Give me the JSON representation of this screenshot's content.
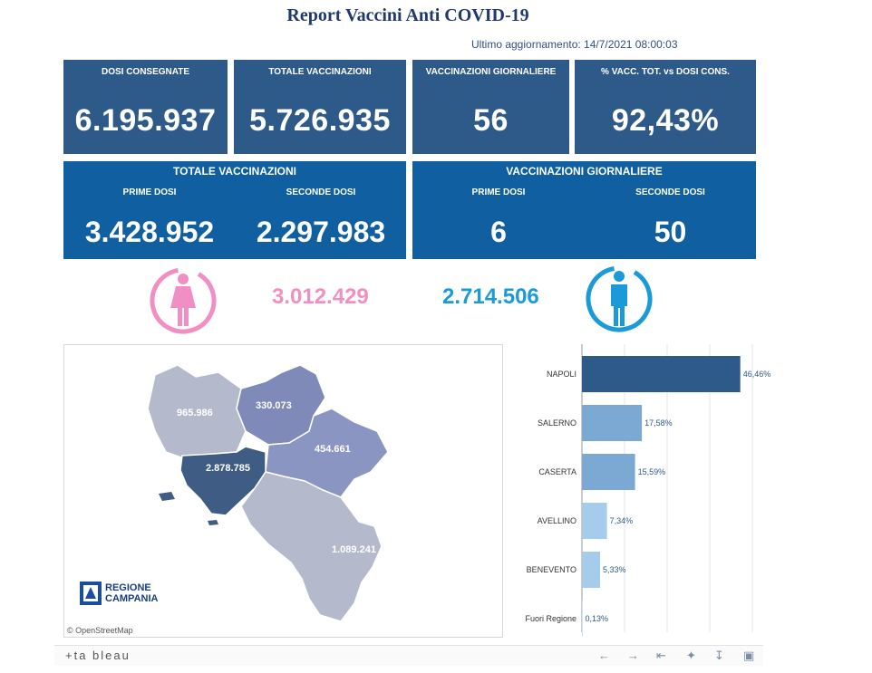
{
  "header": {
    "title": "Report Vaccini Anti COVID-19",
    "updated": "Ultimo aggiornamento: 14/7/2021 08:00:03"
  },
  "kpi": [
    {
      "label": "DOSI  CONSEGNATE",
      "value": "6.195.937"
    },
    {
      "label": "TOTALE VACCINAZIONI",
      "value": "5.726.935"
    },
    {
      "label": "VACCINAZIONI GIORNALIERE",
      "value": "56"
    },
    {
      "label": "% VACC. TOT. vs DOSI CONS.",
      "value": "92,43%"
    }
  ],
  "totale": {
    "title": "TOTALE VACCINAZIONI",
    "prime_label": "PRIME DOSI",
    "prime_value": "3.428.952",
    "seconde_label": "SECONDE DOSI",
    "seconde_value": "2.297.983"
  },
  "giornaliere": {
    "title": "VACCINAZIONI GIORNALIERE",
    "prime_label": "PRIME DOSI",
    "prime_value": "6",
    "seconde_label": "SECONDE DOSI",
    "seconde_value": "50"
  },
  "gender": {
    "female_value": "3.012.429",
    "male_value": "2.714.506",
    "female_color": "#f18fc4",
    "male_color": "#1a9ad9",
    "female_icon": "female-icon",
    "male_icon": "male-icon"
  },
  "map": {
    "labels": {
      "caserta": "965.986",
      "benevento": "330.073",
      "avellino": "454.661",
      "napoli": "2.878.785",
      "salerno": "1.089.241"
    },
    "logo_line1": "REGIONE",
    "logo_line2": "CAMPANIA",
    "attribution": "© OpenStreetMap"
  },
  "chart_data": {
    "type": "bar",
    "orientation": "horizontal",
    "categories": [
      "NAPOLI",
      "SALERNO",
      "CASERTA",
      "AVELLINO",
      "BENEVENTO",
      "Fuori Regione"
    ],
    "values": [
      46.46,
      17.58,
      15.59,
      7.34,
      5.33,
      0.13
    ],
    "value_labels": [
      "46,46%",
      "17,58%",
      "15,59%",
      "7,34%",
      "5,33%",
      "0,13%"
    ],
    "colors": [
      "#2e5a8a",
      "#7ba9d4",
      "#7ba9d4",
      "#a5cdeb",
      "#a5cdeb",
      "#a5cdeb"
    ],
    "xlim": [
      0,
      50
    ],
    "grid": true
  },
  "footer": {
    "brand": "+ta bleau",
    "controls": [
      "back-icon",
      "forward-icon",
      "revert-icon",
      "share-icon",
      "download-icon",
      "fullscreen-icon"
    ]
  }
}
